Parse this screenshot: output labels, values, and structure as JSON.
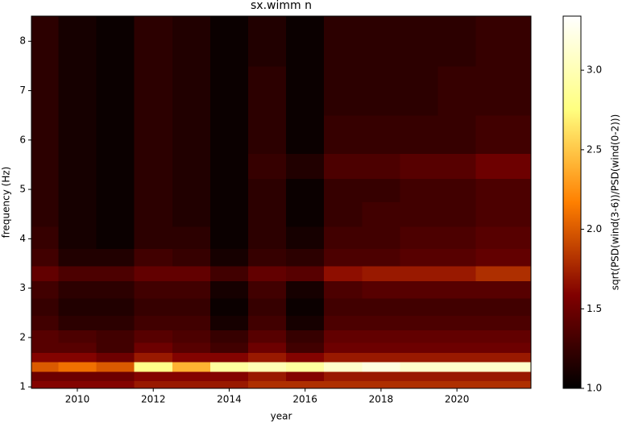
{
  "chart_data": {
    "type": "heatmap",
    "title": "sx.wimm n",
    "x_label": "year",
    "y_label": "frequency (Hz)",
    "colorbar_label": "sqrt(PSD(wind(3-6))/PSD(wind(0-2)))",
    "colormap": "afmhot",
    "x": [
      2009,
      2010,
      2011,
      2012,
      2013,
      2014,
      2015,
      2016,
      2017,
      2018,
      2019,
      2020,
      2021
    ],
    "y": [
      1.05,
      1.2,
      1.42,
      1.6,
      1.8,
      2.0,
      2.3,
      2.6,
      3.0,
      3.3,
      3.6,
      4.0,
      4.5,
      5.0,
      5.45,
      6.0,
      7.0,
      8.0
    ],
    "z": [
      [
        1.6,
        1.6,
        1.6,
        1.7,
        1.7,
        1.7,
        1.8,
        1.8,
        1.8,
        1.8,
        1.8,
        1.8,
        1.8
      ],
      [
        1.5,
        1.5,
        1.5,
        1.6,
        1.6,
        1.6,
        1.7,
        1.6,
        1.7,
        1.7,
        1.7,
        1.7,
        1.7
      ],
      [
        2.0,
        2.1,
        2.0,
        2.8,
        2.4,
        2.9,
        3.0,
        2.9,
        3.1,
        3.2,
        3.1,
        3.1,
        3.1
      ],
      [
        1.6,
        1.6,
        1.5,
        1.7,
        1.6,
        1.6,
        1.7,
        1.6,
        1.7,
        1.7,
        1.7,
        1.7,
        1.7
      ],
      [
        1.4,
        1.4,
        1.3,
        1.5,
        1.4,
        1.3,
        1.5,
        1.3,
        1.5,
        1.5,
        1.5,
        1.5,
        1.5
      ],
      [
        1.4,
        1.35,
        1.3,
        1.4,
        1.35,
        1.25,
        1.4,
        1.25,
        1.45,
        1.45,
        1.45,
        1.45,
        1.45
      ],
      [
        1.3,
        1.2,
        1.2,
        1.3,
        1.3,
        1.1,
        1.3,
        1.1,
        1.35,
        1.35,
        1.35,
        1.35,
        1.35
      ],
      [
        1.25,
        1.15,
        1.15,
        1.25,
        1.25,
        1.05,
        1.25,
        1.05,
        1.3,
        1.3,
        1.3,
        1.3,
        1.3
      ],
      [
        1.3,
        1.2,
        1.2,
        1.3,
        1.3,
        1.1,
        1.3,
        1.1,
        1.35,
        1.4,
        1.4,
        1.4,
        1.4
      ],
      [
        1.45,
        1.35,
        1.35,
        1.45,
        1.45,
        1.3,
        1.45,
        1.4,
        1.65,
        1.7,
        1.7,
        1.7,
        1.8
      ],
      [
        1.3,
        1.15,
        1.15,
        1.3,
        1.25,
        1.1,
        1.25,
        1.2,
        1.35,
        1.35,
        1.4,
        1.4,
        1.45
      ],
      [
        1.25,
        1.1,
        1.05,
        1.2,
        1.2,
        1.05,
        1.2,
        1.1,
        1.3,
        1.3,
        1.35,
        1.35,
        1.4
      ],
      [
        1.2,
        1.1,
        1.05,
        1.2,
        1.15,
        1.05,
        1.2,
        1.05,
        1.25,
        1.3,
        1.3,
        1.3,
        1.35
      ],
      [
        1.2,
        1.1,
        1.05,
        1.2,
        1.15,
        1.05,
        1.2,
        1.05,
        1.25,
        1.25,
        1.3,
        1.3,
        1.35
      ],
      [
        1.2,
        1.1,
        1.05,
        1.2,
        1.15,
        1.05,
        1.25,
        1.15,
        1.35,
        1.35,
        1.4,
        1.4,
        1.5
      ],
      [
        1.2,
        1.1,
        1.05,
        1.2,
        1.15,
        1.05,
        1.2,
        1.05,
        1.25,
        1.25,
        1.25,
        1.25,
        1.3
      ],
      [
        1.2,
        1.1,
        1.05,
        1.2,
        1.15,
        1.05,
        1.2,
        1.05,
        1.2,
        1.2,
        1.2,
        1.25,
        1.25
      ],
      [
        1.2,
        1.1,
        1.05,
        1.2,
        1.15,
        1.05,
        1.15,
        1.05,
        1.2,
        1.2,
        1.2,
        1.2,
        1.25
      ]
    ],
    "xlim": [
      2008.79,
      2021.95
    ],
    "xticks": [
      2010,
      2012,
      2014,
      2016,
      2018,
      2020
    ],
    "ylim": [
      0.97,
      8.51
    ],
    "yticks": [
      1,
      2,
      3,
      4,
      5,
      6,
      7,
      8
    ],
    "clim": [
      1.0,
      3.34
    ],
    "cticks": [
      {
        "value": 1.0,
        "label": "1.0"
      },
      {
        "value": 1.5,
        "label": "1.5"
      },
      {
        "value": 2.0,
        "label": "2.0"
      },
      {
        "value": 2.5,
        "label": "2.5"
      },
      {
        "value": 3.0,
        "label": "3.0"
      }
    ]
  }
}
